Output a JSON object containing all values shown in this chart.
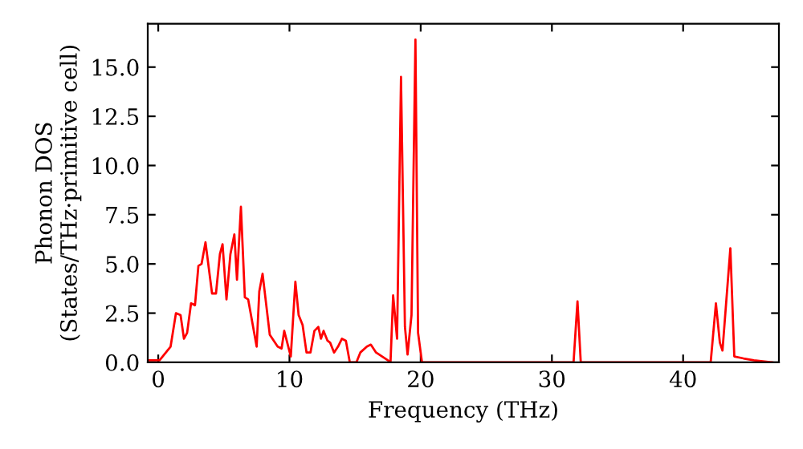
{
  "chart_data": {
    "type": "line",
    "xlabel": "Frequency (THz)",
    "ylabel": "Phonon DOS\n(States/THz·primitive cell)",
    "x": [
      -0.7,
      0.1,
      0.94,
      1.35,
      1.7,
      1.96,
      2.2,
      2.5,
      2.8,
      3.06,
      3.3,
      3.6,
      4.1,
      4.4,
      4.7,
      4.9,
      5.2,
      5.5,
      5.8,
      6.0,
      6.3,
      6.6,
      6.85,
      7.5,
      7.7,
      7.95,
      8.5,
      9.1,
      9.4,
      9.6,
      10.1,
      10.45,
      10.7,
      11.0,
      11.3,
      11.6,
      11.9,
      12.2,
      12.4,
      12.6,
      12.9,
      13.1,
      13.4,
      13.7,
      14.0,
      14.3,
      14.6,
      15.1,
      15.4,
      15.9,
      16.2,
      16.6,
      17.5,
      17.7,
      17.9,
      18.2,
      18.5,
      18.8,
      19.0,
      19.3,
      19.6,
      19.8,
      20.1,
      31.65,
      31.95,
      32.2,
      42.1,
      42.5,
      42.8,
      43.0,
      43.6,
      43.9,
      44.6,
      45.4,
      46.8
    ],
    "series": [
      {
        "color": "#ff0000",
        "values": [
          0.1,
          0.1,
          0.8,
          2.5,
          2.4,
          1.2,
          1.5,
          3.0,
          2.9,
          4.9,
          5.0,
          6.1,
          3.5,
          3.5,
          5.5,
          6.0,
          3.2,
          5.5,
          6.5,
          4.2,
          7.9,
          3.3,
          3.2,
          0.8,
          3.6,
          4.5,
          1.4,
          0.8,
          0.7,
          1.6,
          0.3,
          4.1,
          2.4,
          1.9,
          0.5,
          0.5,
          1.6,
          1.8,
          1.2,
          1.6,
          1.1,
          1.0,
          0.5,
          0.8,
          1.2,
          1.1,
          0.0,
          0.0,
          0.5,
          0.8,
          0.9,
          0.5,
          0.1,
          0.0,
          3.4,
          1.2,
          14.5,
          1.8,
          0.4,
          2.4,
          16.4,
          1.5,
          0.0,
          0.0,
          3.1,
          0.0,
          0.0,
          3.0,
          1.0,
          0.6,
          5.8,
          0.3,
          0.2,
          0.1,
          0.0
        ]
      }
    ],
    "xlim": [
      -0.8,
      47.3
    ],
    "ylim": [
      0,
      17.2
    ],
    "xticks": [
      0,
      10,
      20,
      30,
      40
    ],
    "yticks": [
      {
        "value": 0,
        "label": "0.0"
      },
      2.5,
      {
        "value": 5,
        "label": "5.0"
      },
      7.5,
      {
        "value": 10,
        "label": "10.0"
      },
      12.5,
      {
        "value": 15,
        "label": "15.0"
      }
    ],
    "grid": false,
    "legend": false
  }
}
